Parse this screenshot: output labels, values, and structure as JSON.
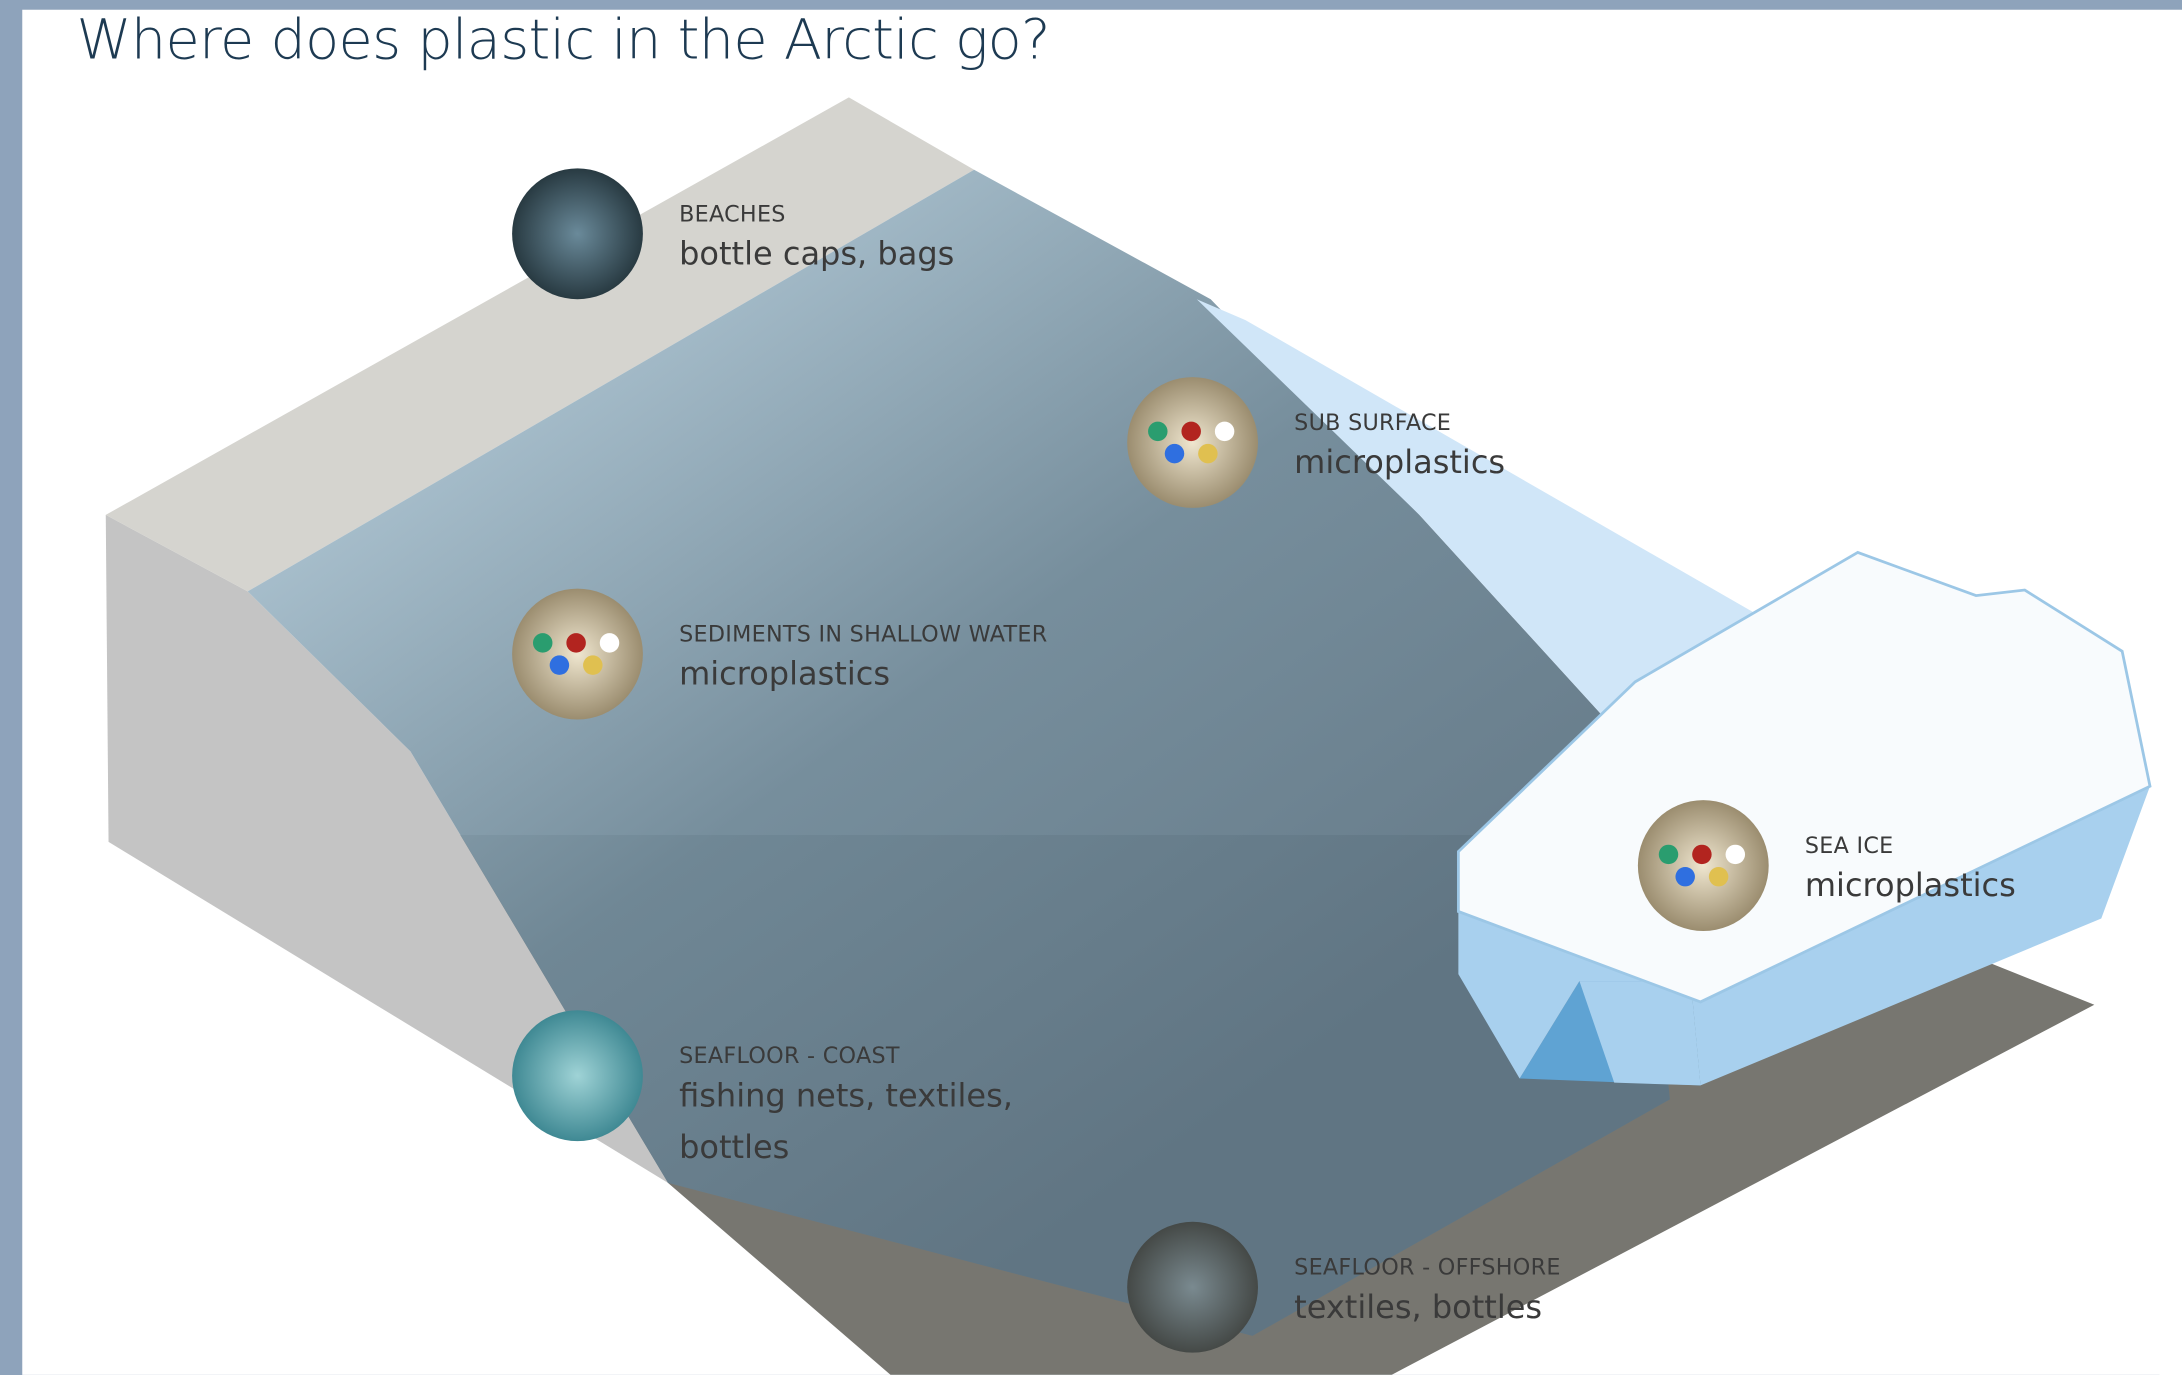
{
  "title": "Where does plastic in the Arctic go?",
  "locations": [
    {
      "label": "BEACHES",
      "items": "bottle caps, bags"
    },
    {
      "label": "SUB SURFACE",
      "items": "microplastics"
    },
    {
      "label": "SEDIMENTS IN SHALLOW WATER",
      "items": "microplastics"
    },
    {
      "label": "SEAFLOOR - COAST",
      "items": "fishing nets, textiles, bottles"
    },
    {
      "label": "SEAFLOOR - OFFSHORE",
      "items": "textiles, bottles"
    },
    {
      "label": "SEA ICE",
      "items": "microplastics"
    }
  ]
}
